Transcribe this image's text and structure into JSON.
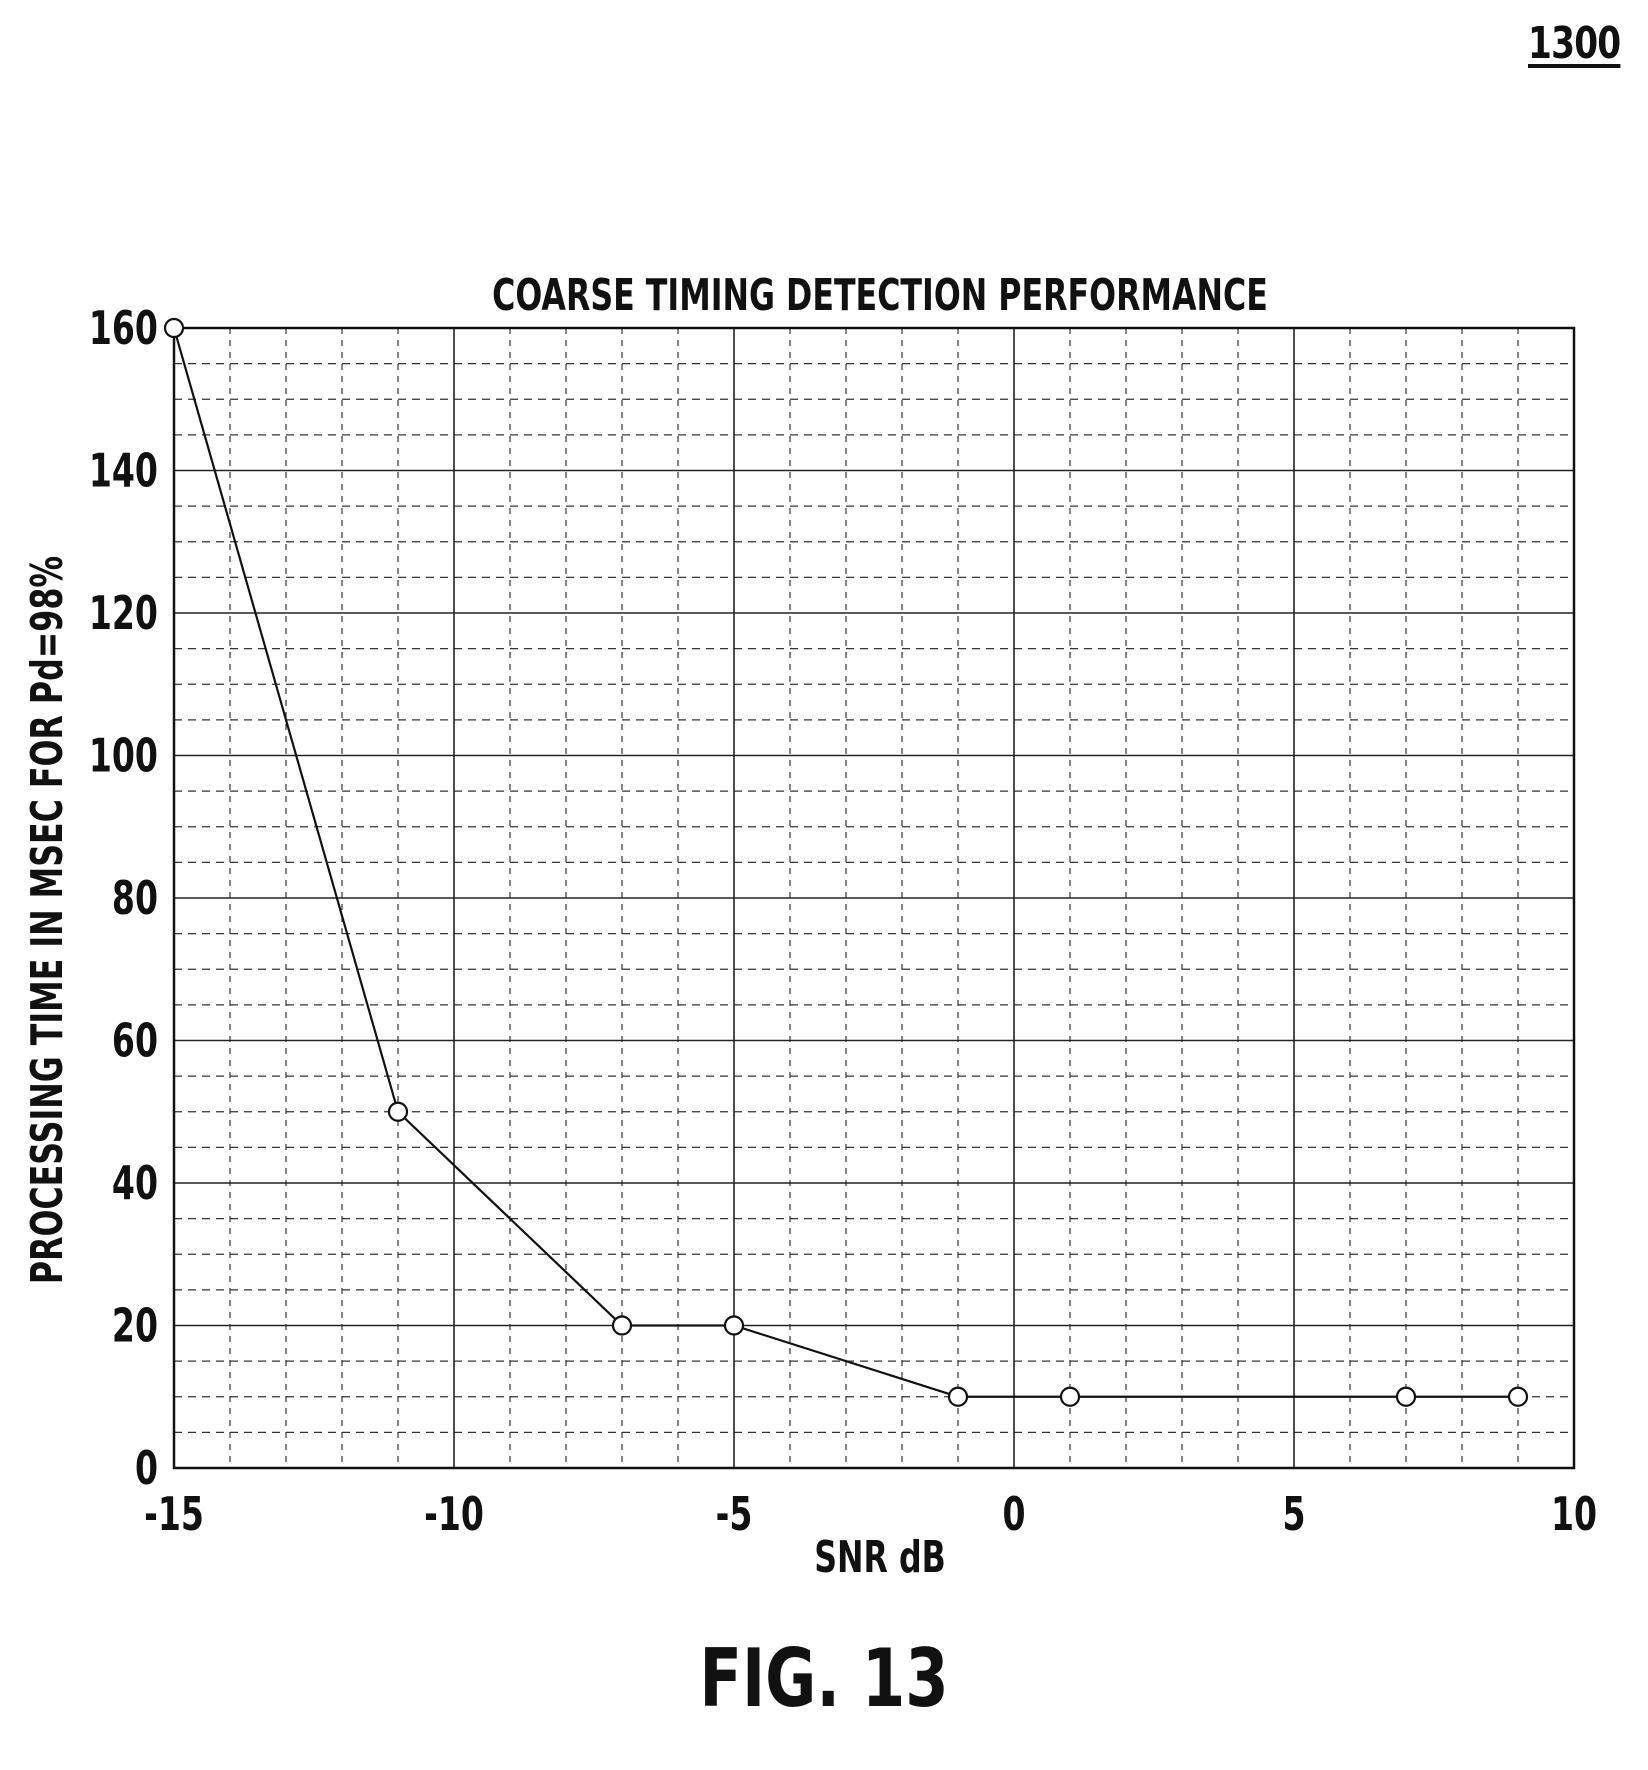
{
  "figure": {
    "ref_label": "1300",
    "caption": "FIG. 13"
  },
  "chart_data": {
    "type": "line",
    "title": "COARSE TIMING DETECTION PERFORMANCE",
    "xlabel": "SNR dB",
    "ylabel": "PROCESSING TIME IN MSEC FOR Pd=98%",
    "xlim": [
      -15,
      10
    ],
    "ylim": [
      0,
      160
    ],
    "xticks": [
      -15,
      -10,
      -5,
      0,
      5,
      10
    ],
    "yticks": [
      0,
      20,
      40,
      60,
      80,
      100,
      120,
      140,
      160
    ],
    "xtick_labels": [
      "-15",
      "-10",
      "-5",
      "0",
      "5",
      "10"
    ],
    "ytick_labels": [
      "0",
      "20",
      "40",
      "60",
      "80",
      "100",
      "120",
      "140",
      "160"
    ],
    "grid": true,
    "series": [
      {
        "x": [
          -15,
          -11,
          -7,
          -5,
          -1,
          1,
          7,
          9
        ],
        "y": [
          160,
          50,
          20,
          20,
          10,
          10,
          10,
          10
        ],
        "marker": "circle",
        "color": "#111111"
      }
    ]
  }
}
